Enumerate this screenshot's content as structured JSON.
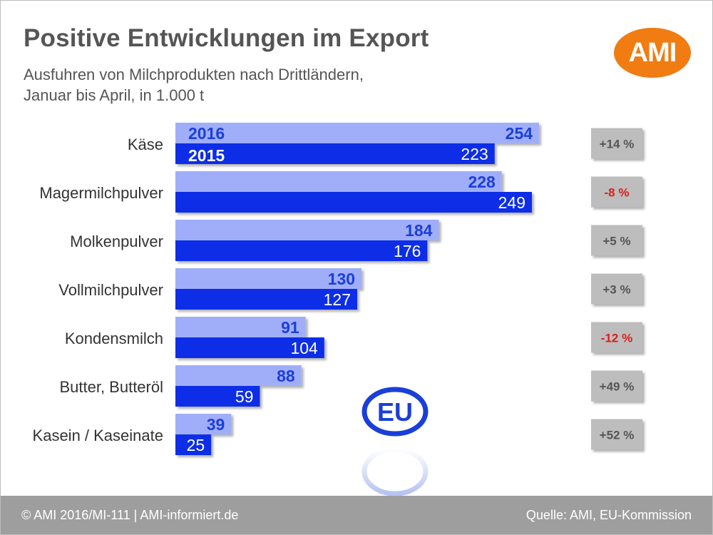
{
  "header": {
    "title": "Positive Entwicklungen im Export",
    "subtitle_line1": "Ausfuhren von Milchprodukten nach Drittländern,",
    "subtitle_line2": "Januar bis April, in 1.000 t",
    "logo_text": "AMI"
  },
  "footer": {
    "left": "© AMI 2016/MI-111 | AMI-informiert.de",
    "right": "Quelle: AMI, EU-Kommission"
  },
  "badge": {
    "text": "EU"
  },
  "colors": {
    "bar_2016": "#a0aefa",
    "bar_2015": "#0f2fe6",
    "label_2016": "#1b3fd8",
    "label_2015": "#ffffff",
    "change_box": "#bdbdbd",
    "change_positive": "#555555",
    "change_negative": "#e11b1b",
    "logo": "#f07c12"
  },
  "chart_data": {
    "type": "bar",
    "orientation": "horizontal",
    "categories": [
      "Käse",
      "Magermilchpulver",
      "Molkenpulver",
      "Vollmilchpulver",
      "Kondensmilch",
      "Butter, Butteröl",
      "Kasein / Kaseinate"
    ],
    "series": [
      {
        "name": "2016",
        "values": [
          254,
          228,
          184,
          130,
          91,
          88,
          39
        ]
      },
      {
        "name": "2015",
        "values": [
          223,
          249,
          176,
          127,
          104,
          59,
          25
        ]
      }
    ],
    "changes": [
      "+14 %",
      "-8 %",
      "+5 %",
      "+3 %",
      "-12 %",
      "+49 %",
      "+52 %"
    ],
    "change_negative": [
      false,
      true,
      false,
      false,
      true,
      false,
      false
    ],
    "legend_in_first_row": true,
    "xlim": [
      0,
      254
    ],
    "grid": false
  }
}
